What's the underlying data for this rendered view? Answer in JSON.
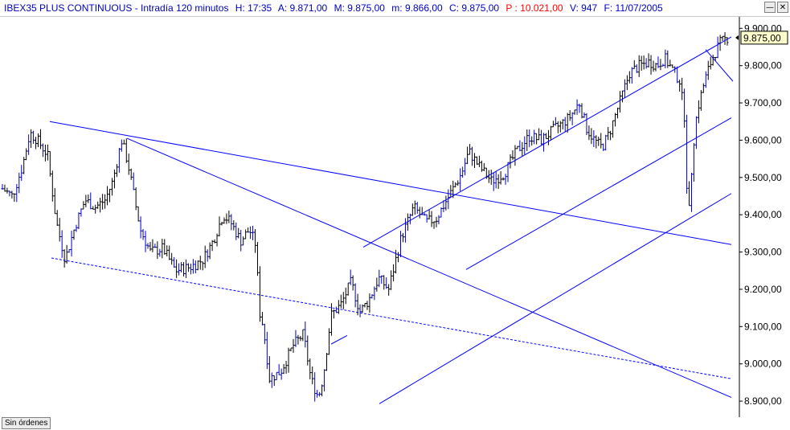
{
  "header": {
    "title": "IBEX35 PLUS CONTINUOUS - Intradía 120 minutos",
    "hour": "H: 17:35",
    "open": "A: 9.871,00",
    "high": "M: 9.875,00",
    "low": "m: 9.866,00",
    "close": "C: 9.875,00",
    "p": "P : 10.021,00",
    "volume": "V: 947",
    "date": "F: 11/07/2005",
    "minimize_symbol": "—",
    "close_symbol": "✕"
  },
  "status": {
    "label": "Sin órdenes"
  },
  "colors": {
    "bars": "#000000",
    "bars_alt": "#0000cc",
    "lines": "#0000ff",
    "current_bg": "#ffffcc"
  },
  "chart_data": {
    "type": "ohlc",
    "ylim": [
      8870,
      9920
    ],
    "y_ticks": [
      {
        "value": 8900,
        "label": "8.900,00"
      },
      {
        "value": 9000,
        "label": "9.000,00"
      },
      {
        "value": 9100,
        "label": "9.100,00"
      },
      {
        "value": 9200,
        "label": "9.200,00"
      },
      {
        "value": 9300,
        "label": "9.300,00"
      },
      {
        "value": 9400,
        "label": "9.400,00"
      },
      {
        "value": 9500,
        "label": "9.500,00"
      },
      {
        "value": 9600,
        "label": "9.600,00"
      },
      {
        "value": 9700,
        "label": "9.700,00"
      },
      {
        "value": 9800,
        "label": "9.800,00"
      },
      {
        "value": 9900,
        "label": "9.900,00"
      }
    ],
    "current_price": {
      "value": 9875,
      "label": "9.875,00"
    },
    "bar_count": 305,
    "price_path": [
      [
        0,
        9470
      ],
      [
        8,
        9450
      ],
      [
        16,
        9530
      ],
      [
        22,
        9620
      ],
      [
        28,
        9600
      ],
      [
        36,
        9560
      ],
      [
        43,
        9380
      ],
      [
        50,
        9280
      ],
      [
        58,
        9370
      ],
      [
        66,
        9440
      ],
      [
        74,
        9420
      ],
      [
        82,
        9440
      ],
      [
        88,
        9490
      ],
      [
        95,
        9600
      ],
      [
        100,
        9540
      ],
      [
        106,
        9430
      ],
      [
        110,
        9360
      ],
      [
        118,
        9300
      ],
      [
        128,
        9310
      ],
      [
        138,
        9250
      ],
      [
        150,
        9260
      ],
      [
        160,
        9280
      ],
      [
        168,
        9330
      ],
      [
        176,
        9400
      ],
      [
        182,
        9380
      ],
      [
        190,
        9330
      ],
      [
        197,
        9360
      ],
      [
        202,
        9320
      ],
      [
        205,
        9140
      ],
      [
        208,
        9100
      ],
      [
        213,
        8960
      ],
      [
        222,
        8980
      ],
      [
        232,
        9050
      ],
      [
        240,
        9080
      ],
      [
        246,
        8960
      ],
      [
        252,
        8910
      ],
      [
        256,
        8970
      ],
      [
        262,
        9130
      ],
      [
        270,
        9160
      ],
      [
        278,
        9220
      ],
      [
        285,
        9140
      ],
      [
        292,
        9170
      ],
      [
        300,
        9230
      ],
      [
        308,
        9200
      ],
      [
        318,
        9340
      ],
      [
        328,
        9420
      ],
      [
        338,
        9380
      ],
      [
        346,
        9390
      ],
      [
        356,
        9450
      ],
      [
        366,
        9510
      ],
      [
        372,
        9570
      ],
      [
        380,
        9530
      ],
      [
        390,
        9490
      ],
      [
        400,
        9510
      ],
      [
        410,
        9570
      ],
      [
        420,
        9610
      ],
      [
        430,
        9600
      ],
      [
        440,
        9630
      ],
      [
        452,
        9660
      ],
      [
        460,
        9700
      ],
      [
        466,
        9630
      ],
      [
        472,
        9600
      ],
      [
        478,
        9580
      ],
      [
        484,
        9620
      ],
      [
        492,
        9700
      ],
      [
        500,
        9780
      ],
      [
        508,
        9800
      ],
      [
        516,
        9810
      ],
      [
        522,
        9800
      ],
      [
        528,
        9820
      ],
      [
        534,
        9790
      ],
      [
        540,
        9760
      ],
      [
        544,
        9660
      ],
      [
        546,
        9450
      ],
      [
        548,
        9400
      ],
      [
        550,
        9560
      ],
      [
        554,
        9680
      ],
      [
        560,
        9760
      ],
      [
        566,
        9820
      ],
      [
        572,
        9860
      ],
      [
        578,
        9875
      ]
    ],
    "trendlines": [
      {
        "x1": 62,
        "y1": 9650,
        "x2": 910,
        "y2": 9320,
        "style": "solid"
      },
      {
        "x1": 158,
        "y1": 9605,
        "x2": 910,
        "y2": 8910,
        "style": "solid"
      },
      {
        "x1": 452,
        "y1": 9313,
        "x2": 910,
        "y2": 9877,
        "style": "solid"
      },
      {
        "x1": 580,
        "y1": 9253,
        "x2": 910,
        "y2": 9660,
        "style": "solid"
      },
      {
        "x1": 472,
        "y1": 8893,
        "x2": 910,
        "y2": 9457,
        "style": "solid"
      },
      {
        "x1": 412,
        "y1": 9053,
        "x2": 432,
        "y2": 9076,
        "style": "solid"
      },
      {
        "x1": 64,
        "y1": 9284,
        "x2": 910,
        "y2": 8960,
        "style": "dashed"
      },
      {
        "x1": 878,
        "y1": 9843,
        "x2": 912,
        "y2": 9758,
        "style": "solid"
      }
    ]
  }
}
